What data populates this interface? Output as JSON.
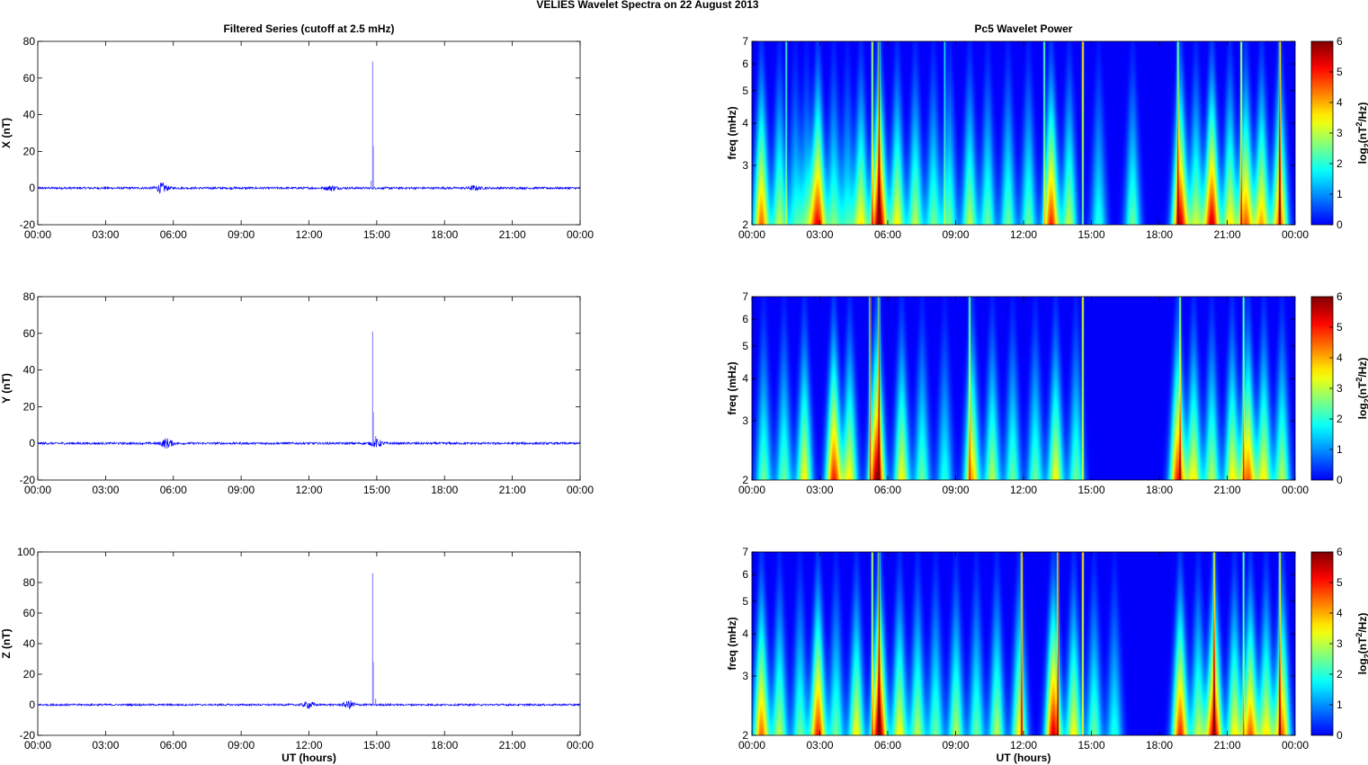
{
  "figure_title": "VELIES Wavelet Spectra on 22 August    2013",
  "chart_data": [
    {
      "type": "line",
      "panel": "X",
      "title": "Filtered Series (cutoff at 2.5 mHz)",
      "xlabel": "",
      "ylabel": "X (nT)",
      "ylim": [
        -20,
        80
      ],
      "yticks": [
        "-20",
        "0",
        "20",
        "40",
        "60",
        "80"
      ],
      "xlim_hours": [
        0,
        24
      ],
      "xticks": [
        "00:00",
        "03:00",
        "06:00",
        "09:00",
        "12:00",
        "15:00",
        "18:00",
        "21:00",
        "00:00"
      ],
      "baseline": 0,
      "noise_amplitude": 0.6,
      "bursts": [
        {
          "t": 5.5,
          "amp": 2.5
        },
        {
          "t": 13.0,
          "amp": 1.2
        },
        {
          "t": 19.3,
          "amp": 1.0
        }
      ],
      "spikes": [
        {
          "t": 14.82,
          "value": 69
        },
        {
          "t": 14.85,
          "value": 23
        },
        {
          "t": 14.75,
          "value": 4
        }
      ],
      "color": "#0000ff"
    },
    {
      "type": "line",
      "panel": "Y",
      "title": "",
      "xlabel": "",
      "ylabel": "Y (nT)",
      "ylim": [
        -20,
        80
      ],
      "yticks": [
        "-20",
        "0",
        "20",
        "40",
        "60",
        "80"
      ],
      "xlim_hours": [
        0,
        24
      ],
      "xticks": [
        "00:00",
        "03:00",
        "06:00",
        "09:00",
        "12:00",
        "15:00",
        "18:00",
        "21:00",
        "00:00"
      ],
      "baseline": 0,
      "noise_amplitude": 0.6,
      "bursts": [
        {
          "t": 5.7,
          "amp": 2.5
        },
        {
          "t": 15.0,
          "amp": 2.0
        }
      ],
      "spikes": [
        {
          "t": 14.82,
          "value": 61
        },
        {
          "t": 14.85,
          "value": 17
        },
        {
          "t": 14.95,
          "value": 4
        }
      ],
      "color": "#0000ff"
    },
    {
      "type": "line",
      "panel": "Z",
      "title": "",
      "xlabel": "UT (hours)",
      "ylabel": "Z (nT)",
      "ylim": [
        -20,
        100
      ],
      "yticks": [
        "-20",
        "0",
        "20",
        "40",
        "60",
        "80",
        "100"
      ],
      "xlim_hours": [
        0,
        24
      ],
      "xticks": [
        "00:00",
        "03:00",
        "06:00",
        "09:00",
        "12:00",
        "15:00",
        "18:00",
        "21:00",
        "00:00"
      ],
      "baseline": 0,
      "noise_amplitude": 0.6,
      "bursts": [
        {
          "t": 12.0,
          "amp": 2.0
        },
        {
          "t": 13.8,
          "amp": 2.5
        }
      ],
      "spikes": [
        {
          "t": 14.82,
          "value": 86
        },
        {
          "t": 14.85,
          "value": 28
        },
        {
          "t": 14.95,
          "value": 4
        }
      ],
      "color": "#0000ff"
    },
    {
      "type": "heatmap",
      "panel": "X",
      "title": "Pc5 Wavelet Power",
      "xlabel": "",
      "ylabel": "freq (mHz)",
      "yscale": "log",
      "ylim_mhz": [
        2,
        7
      ],
      "yticks": [
        "2",
        "3",
        "4",
        "5",
        "6",
        "7"
      ],
      "xlim_hours": [
        0,
        24
      ],
      "xticks": [
        "00:00",
        "03:00",
        "06:00",
        "09:00",
        "12:00",
        "15:00",
        "18:00",
        "21:00",
        "00:00"
      ],
      "colorbar_label": "log2(nT^2/Hz)",
      "colorbar_ticks": [
        "0",
        "1",
        "2",
        "3",
        "4",
        "5",
        "6"
      ],
      "clim": [
        0,
        6
      ],
      "colormap": "jet",
      "blobs": [
        {
          "t": 0.4,
          "p": 4.5
        },
        {
          "t": 1.2,
          "p": 3.0
        },
        {
          "t": 1.9,
          "p": 2.0
        },
        {
          "t": 2.4,
          "p": 2.0
        },
        {
          "t": 2.9,
          "p": 5.0
        },
        {
          "t": 3.6,
          "p": 2.5
        },
        {
          "t": 4.2,
          "p": 2.0
        },
        {
          "t": 4.8,
          "p": 3.5
        },
        {
          "t": 5.6,
          "p": 6.0
        },
        {
          "t": 6.4,
          "p": 3.5
        },
        {
          "t": 7.2,
          "p": 3.0
        },
        {
          "t": 8.0,
          "p": 2.5
        },
        {
          "t": 8.7,
          "p": 2.5
        },
        {
          "t": 9.6,
          "p": 3.0
        },
        {
          "t": 10.4,
          "p": 2.5
        },
        {
          "t": 11.3,
          "p": 2.5
        },
        {
          "t": 12.2,
          "p": 2.5
        },
        {
          "t": 13.2,
          "p": 5.0
        },
        {
          "t": 14.0,
          "p": 3.0
        },
        {
          "t": 15.3,
          "p": 2.0
        },
        {
          "t": 16.8,
          "p": 2.5
        },
        {
          "t": 18.9,
          "p": 5.5
        },
        {
          "t": 19.6,
          "p": 3.0
        },
        {
          "t": 20.3,
          "p": 5.5
        },
        {
          "t": 21.1,
          "p": 3.5
        },
        {
          "t": 21.8,
          "p": 4.5
        },
        {
          "t": 22.5,
          "p": 4.0
        },
        {
          "t": 23.3,
          "p": 4.5
        }
      ],
      "streaks": [
        {
          "t": 5.3,
          "p": 4.0
        },
        {
          "t": 5.6,
          "p": 5.0
        },
        {
          "t": 14.6,
          "p": 5.0
        },
        {
          "t": 21.6,
          "p": 4.0
        },
        {
          "t": 23.3,
          "p": 5.0
        },
        {
          "t": 1.5,
          "p": 2.5
        },
        {
          "t": 8.5,
          "p": 2.0
        },
        {
          "t": 12.9,
          "p": 3.0
        },
        {
          "t": 18.8,
          "p": 3.5
        }
      ]
    },
    {
      "type": "heatmap",
      "panel": "Y",
      "title": "",
      "xlabel": "",
      "ylabel": "freq (mHz)",
      "yscale": "log",
      "ylim_mhz": [
        2,
        7
      ],
      "yticks": [
        "2",
        "3",
        "4",
        "5",
        "6",
        "7"
      ],
      "xlim_hours": [
        0,
        24
      ],
      "xticks": [
        "00:00",
        "03:00",
        "06:00",
        "09:00",
        "12:00",
        "15:00",
        "18:00",
        "21:00",
        "00:00"
      ],
      "colorbar_label": "log2(nT^2/Hz)",
      "colorbar_ticks": [
        "0",
        "1",
        "2",
        "3",
        "4",
        "5",
        "6"
      ],
      "clim": [
        0,
        6
      ],
      "colormap": "jet",
      "blobs": [
        {
          "t": 0.5,
          "p": 2.5
        },
        {
          "t": 1.4,
          "p": 2.5
        },
        {
          "t": 2.3,
          "p": 3.5
        },
        {
          "t": 3.6,
          "p": 5.0
        },
        {
          "t": 4.3,
          "p": 3.5
        },
        {
          "t": 5.5,
          "p": 6.0
        },
        {
          "t": 6.6,
          "p": 3.5
        },
        {
          "t": 7.5,
          "p": 2.5
        },
        {
          "t": 8.5,
          "p": 2.0
        },
        {
          "t": 9.7,
          "p": 4.0
        },
        {
          "t": 10.6,
          "p": 3.0
        },
        {
          "t": 11.5,
          "p": 2.5
        },
        {
          "t": 12.5,
          "p": 2.5
        },
        {
          "t": 13.4,
          "p": 3.5
        },
        {
          "t": 14.3,
          "p": 2.5
        },
        {
          "t": 18.8,
          "p": 5.0
        },
        {
          "t": 19.5,
          "p": 3.5
        },
        {
          "t": 20.3,
          "p": 3.0
        },
        {
          "t": 21.2,
          "p": 3.5
        },
        {
          "t": 21.9,
          "p": 4.5
        },
        {
          "t": 22.6,
          "p": 3.5
        },
        {
          "t": 23.4,
          "p": 3.0
        }
      ],
      "streaks": [
        {
          "t": 5.2,
          "p": 5.0
        },
        {
          "t": 5.6,
          "p": 4.5
        },
        {
          "t": 14.6,
          "p": 4.5
        },
        {
          "t": 9.6,
          "p": 3.0
        },
        {
          "t": 21.7,
          "p": 3.5
        },
        {
          "t": 18.9,
          "p": 3.0
        }
      ]
    },
    {
      "type": "heatmap",
      "panel": "Z",
      "title": "",
      "xlabel": "UT (hours)",
      "ylabel": "freq (mHz)",
      "yscale": "log",
      "ylim_mhz": [
        2,
        7
      ],
      "yticks": [
        "2",
        "3",
        "4",
        "5",
        "6",
        "7"
      ],
      "xlim_hours": [
        0,
        24
      ],
      "xticks": [
        "00:00",
        "03:00",
        "06:00",
        "09:00",
        "12:00",
        "15:00",
        "18:00",
        "21:00",
        "00:00"
      ],
      "colorbar_label": "log2(nT^2/Hz)",
      "colorbar_ticks": [
        "0",
        "1",
        "2",
        "3",
        "4",
        "5",
        "6"
      ],
      "clim": [
        0,
        6
      ],
      "colormap": "jet",
      "blobs": [
        {
          "t": 0.4,
          "p": 4.5
        },
        {
          "t": 1.2,
          "p": 3.0
        },
        {
          "t": 2.1,
          "p": 2.5
        },
        {
          "t": 2.9,
          "p": 5.0
        },
        {
          "t": 3.7,
          "p": 2.5
        },
        {
          "t": 4.6,
          "p": 3.5
        },
        {
          "t": 5.6,
          "p": 6.0
        },
        {
          "t": 6.5,
          "p": 3.5
        },
        {
          "t": 7.3,
          "p": 3.0
        },
        {
          "t": 8.1,
          "p": 2.5
        },
        {
          "t": 9.0,
          "p": 3.0
        },
        {
          "t": 9.9,
          "p": 2.5
        },
        {
          "t": 10.8,
          "p": 3.0
        },
        {
          "t": 11.8,
          "p": 3.5
        },
        {
          "t": 13.3,
          "p": 5.5
        },
        {
          "t": 14.2,
          "p": 3.5
        },
        {
          "t": 15.1,
          "p": 2.5
        },
        {
          "t": 16.0,
          "p": 2.0
        },
        {
          "t": 18.9,
          "p": 5.0
        },
        {
          "t": 19.7,
          "p": 3.0
        },
        {
          "t": 20.4,
          "p": 5.5
        },
        {
          "t": 21.3,
          "p": 3.5
        },
        {
          "t": 22.0,
          "p": 4.5
        },
        {
          "t": 22.7,
          "p": 3.5
        },
        {
          "t": 23.4,
          "p": 4.5
        }
      ],
      "streaks": [
        {
          "t": 5.3,
          "p": 4.0
        },
        {
          "t": 5.6,
          "p": 5.0
        },
        {
          "t": 11.9,
          "p": 5.0
        },
        {
          "t": 13.5,
          "p": 5.0
        },
        {
          "t": 14.6,
          "p": 5.0
        },
        {
          "t": 20.4,
          "p": 4.0
        },
        {
          "t": 21.7,
          "p": 3.5
        },
        {
          "t": 23.3,
          "p": 4.5
        }
      ]
    }
  ]
}
